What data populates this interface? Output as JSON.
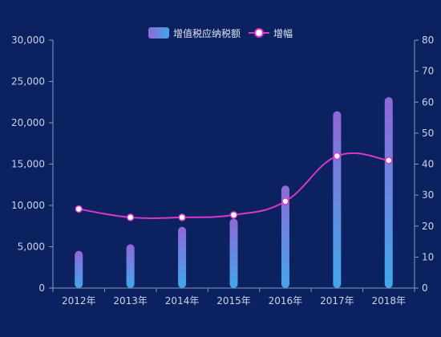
{
  "chart_data": {
    "type": "bar",
    "categories": [
      "2012年",
      "2013年",
      "2014年",
      "2015年",
      "2016年",
      "2017年",
      "2018年"
    ],
    "series": [
      {
        "name": "增值税应纳税额",
        "type": "bar",
        "axis": "left",
        "values": [
          4500,
          5300,
          7400,
          8400,
          12400,
          21400,
          23100
        ]
      },
      {
        "name": "增幅",
        "type": "line",
        "axis": "right",
        "smooth": true,
        "values": [
          25.5,
          22.8,
          22.8,
          23.6,
          28.0,
          42.6,
          41.2
        ]
      }
    ],
    "y_left": {
      "min": 0,
      "max": 30000,
      "ticks": [
        "0",
        "5,000",
        "10,000",
        "15,000",
        "20,000",
        "25,000",
        "30,000"
      ]
    },
    "y_right": {
      "min": 0,
      "max": 80,
      "ticks": [
        "0",
        "10",
        "20",
        "30",
        "40",
        "50",
        "60",
        "70",
        "80"
      ]
    },
    "legend": {
      "placement": "top-center",
      "items": [
        "增值税应纳税额",
        "增幅"
      ]
    },
    "grid": false,
    "colors": {
      "bar_top": "#9068d8",
      "bar_bottom": "#3fa8e8",
      "line": "#d838c8",
      "axis": "#8a99c0",
      "background": "#0c2260"
    }
  }
}
